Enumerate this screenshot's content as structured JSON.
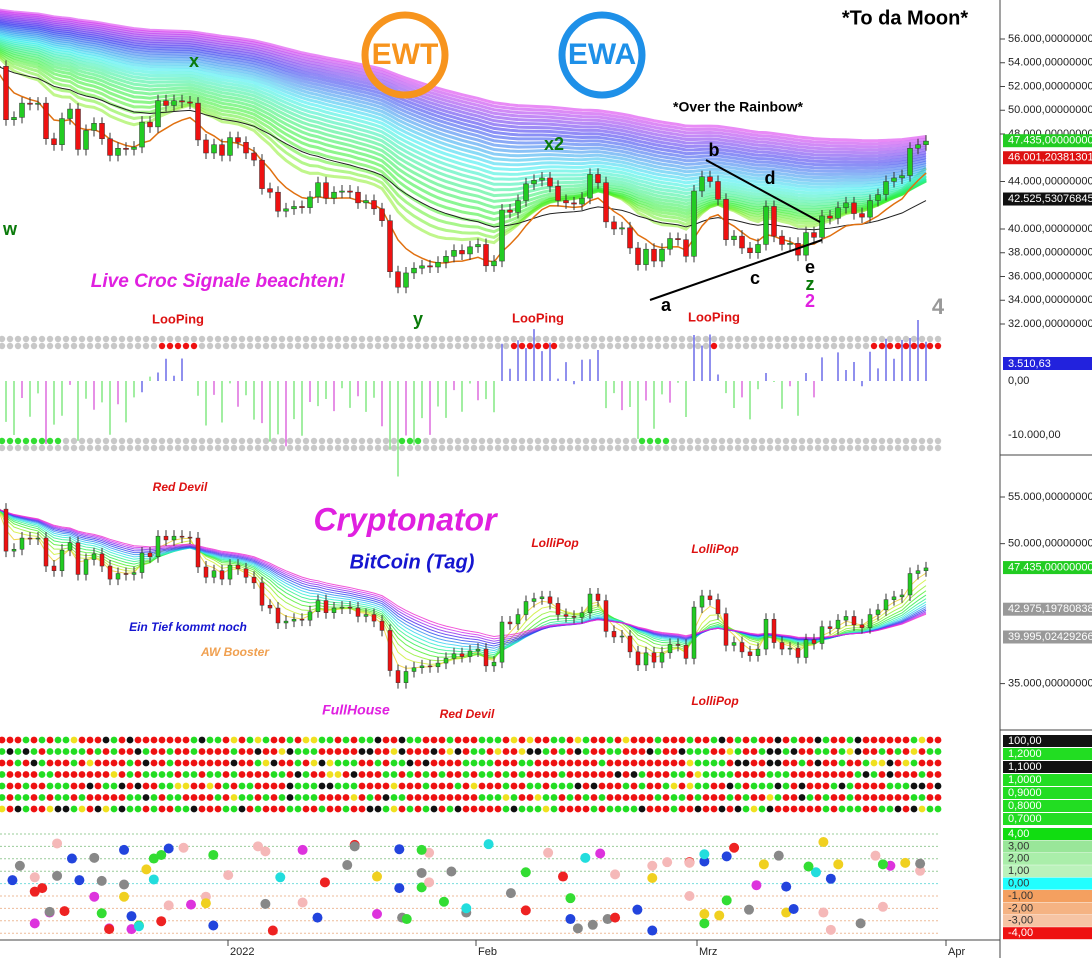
{
  "header": {
    "title": "*To da Moon*",
    "subtitle": "*Over the Rainbow*",
    "logos": [
      "EWT",
      "EWA"
    ]
  },
  "candles": {
    "closes": [
      53700,
      49200,
      49400,
      50600,
      50500,
      50600,
      47600,
      47100,
      49300,
      50100,
      46700,
      48300,
      48900,
      47600,
      46200,
      46800,
      46700,
      46900,
      49000,
      48600,
      50800,
      50400,
      50800,
      50700,
      50600,
      47500,
      46400,
      47100,
      46200,
      47700,
      47300,
      46400,
      45800,
      43400,
      43100,
      41500,
      41700,
      41900,
      41800,
      42700,
      43900,
      42600,
      43100,
      43200,
      43100,
      42200,
      42400,
      41700,
      40700,
      36400,
      35100,
      36300,
      36700,
      36900,
      36800,
      37200,
      37700,
      38200,
      37900,
      38500,
      38700,
      36900,
      37300,
      41600,
      41400,
      42400,
      43800,
      44100,
      44300,
      43600,
      42400,
      42200,
      42100,
      42600,
      44600,
      43900,
      40600,
      40000,
      40100,
      38400,
      37000,
      38300,
      37300,
      38300,
      39200,
      39100,
      37700,
      43200,
      44400,
      44000,
      42500,
      39100,
      39400,
      38400,
      38000,
      38700,
      41900,
      39400,
      38700,
      38800,
      37800,
      39700,
      39300,
      41100,
      40900,
      41800,
      42200,
      41300,
      41000,
      42400,
      42900,
      44000,
      44300,
      44500,
      46800,
      47100,
      47400
    ]
  },
  "panel1": {
    "axis": [
      {
        "value": 56000,
        "label": "56.000,00000000"
      },
      {
        "value": 54000,
        "label": "54.000,00000000"
      },
      {
        "value": 52000,
        "label": "52.000,00000000"
      },
      {
        "value": 50000,
        "label": "50.000,00000000"
      },
      {
        "value": 48000,
        "label": "48.000,00000000"
      },
      {
        "value": 44000,
        "label": "44.000,00000000"
      },
      {
        "value": 40000,
        "label": "40.000,00000000"
      },
      {
        "value": 38000,
        "label": "38.000,00000000"
      },
      {
        "value": 36000,
        "label": "36.000,00000000"
      },
      {
        "value": 34000,
        "label": "34.000,00000000"
      },
      {
        "value": 32000,
        "label": "32.000,00000000"
      }
    ],
    "tags": [
      {
        "value": 47435,
        "label": "47.435,00000000",
        "color": "#22cc22"
      },
      {
        "value": 46001,
        "label": "46.001,20381301",
        "color": "#dd1111"
      },
      {
        "value": 42525,
        "label": "42.525,53076845",
        "color": "#111111"
      }
    ],
    "annotations": {
      "w": "w",
      "x": "x",
      "x2": "x2",
      "y": "y",
      "a": "a",
      "b": "b",
      "c": "c",
      "d": "d",
      "e": "e",
      "z": "z",
      "two": "2",
      "four": "4",
      "croc": "Live Croc Signale beachten!",
      "looping": [
        "LooPing",
        "LooPing",
        "LooPing"
      ]
    }
  },
  "panel2": {
    "axis": [
      "0,00",
      "-10.000,00"
    ],
    "tag": "3.510,63"
  },
  "panel3": {
    "axis": [
      {
        "value": 55000,
        "label": "55.000,00000000"
      },
      {
        "value": 50000,
        "label": "50.000,00000000"
      },
      {
        "value": 35000,
        "label": "35.000,00000000"
      }
    ],
    "tags": [
      {
        "value": 47435,
        "label": "47.435,00000000",
        "color": "#22cc22"
      },
      {
        "value": 42975,
        "label": "42.975,19780838",
        "color": "#999999"
      },
      {
        "value": 39995,
        "label": "39.995,02429266",
        "color": "#999999"
      }
    ],
    "annotations": {
      "title": "Cryptonator",
      "subtitle": "BitCoin (Tag)",
      "red_devil": [
        "Red Devil",
        "Red Devil"
      ],
      "lollipop": [
        "LolliPop",
        "LolliPop",
        "LolliPop"
      ],
      "tief": "Ein Tief kommt noch",
      "booster": "AW Booster",
      "fullhouse": "FullHouse"
    }
  },
  "panel4": {
    "tags": [
      {
        "label": "100,00",
        "color": "#111111"
      },
      {
        "label": "1,2000",
        "color": "#22dd22"
      },
      {
        "label": "1,1000",
        "color": "#111111"
      },
      {
        "label": "1,0000",
        "color": "#22dd22"
      },
      {
        "label": "0,9000",
        "color": "#22dd22"
      },
      {
        "label": "0,8000",
        "color": "#22dd22"
      },
      {
        "label": "0,7000",
        "color": "#22dd22"
      }
    ]
  },
  "panel5": {
    "tags": [
      {
        "label": "4,00",
        "color": "#11dd11"
      },
      {
        "label": "3,00",
        "color": "#99e699"
      },
      {
        "label": "2,00",
        "color": "#aaeeaa"
      },
      {
        "label": "1,00",
        "color": "#bbf2bb"
      },
      {
        "label": "0,00",
        "color": "#22ffff"
      },
      {
        "label": "-1,00",
        "color": "#f4a060"
      },
      {
        "label": "-2,00",
        "color": "#f5b383"
      },
      {
        "label": "-3,00",
        "color": "#f6c4a4"
      },
      {
        "label": "-4,00",
        "color": "#ee1111"
      }
    ]
  },
  "xaxis": [
    "2022",
    "Feb",
    "Mrz",
    "Apr"
  ]
}
